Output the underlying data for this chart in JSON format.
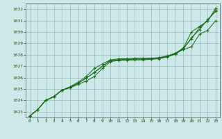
{
  "bg_color": "#cce8e8",
  "plot_bg_color": "#cce8e8",
  "title_bar_color": "#2d6b2d",
  "title_text_color": "#ffffff",
  "grid_color": "#99bbbb",
  "line_color": "#1a6b1a",
  "xlim": [
    -0.5,
    23.5
  ],
  "ylim": [
    1022.5,
    1032.5
  ],
  "yticks": [
    1023,
    1024,
    1025,
    1026,
    1027,
    1028,
    1029,
    1030,
    1031,
    1032
  ],
  "xticks": [
    0,
    1,
    2,
    3,
    4,
    5,
    6,
    7,
    8,
    9,
    10,
    11,
    12,
    13,
    14,
    15,
    16,
    17,
    18,
    19,
    20,
    21,
    22,
    23
  ],
  "series": [
    [
      1022.6,
      1023.2,
      1024.0,
      1024.3,
      1024.9,
      1025.1,
      1025.4,
      1025.7,
      1026.1,
      1026.8,
      1027.4,
      1027.5,
      1027.5,
      1027.55,
      1027.55,
      1027.6,
      1027.65,
      1027.8,
      1028.05,
      1028.5,
      1029.5,
      1030.2,
      1031.1,
      1031.8
    ],
    [
      1022.6,
      1023.2,
      1024.0,
      1024.3,
      1024.9,
      1025.2,
      1025.6,
      1026.1,
      1026.8,
      1027.2,
      1027.55,
      1027.65,
      1027.65,
      1027.7,
      1027.7,
      1027.7,
      1027.75,
      1027.9,
      1028.15,
      1028.45,
      1028.7,
      1029.8,
      1030.15,
      1031.0
    ],
    [
      1022.6,
      1023.2,
      1024.0,
      1024.35,
      1024.9,
      1025.15,
      1025.5,
      1025.95,
      1026.45,
      1027.0,
      1027.5,
      1027.55,
      1027.6,
      1027.62,
      1027.62,
      1027.65,
      1027.72,
      1027.85,
      1028.1,
      1028.6,
      1029.4,
      1030.4,
      1031.0,
      1031.9
    ],
    [
      1022.6,
      1023.2,
      1024.0,
      1024.35,
      1024.9,
      1025.15,
      1025.5,
      1025.95,
      1026.45,
      1027.0,
      1027.5,
      1027.55,
      1027.6,
      1027.62,
      1027.62,
      1027.65,
      1027.72,
      1027.85,
      1028.1,
      1028.6,
      1030.0,
      1030.5,
      1030.95,
      1032.1
    ]
  ]
}
